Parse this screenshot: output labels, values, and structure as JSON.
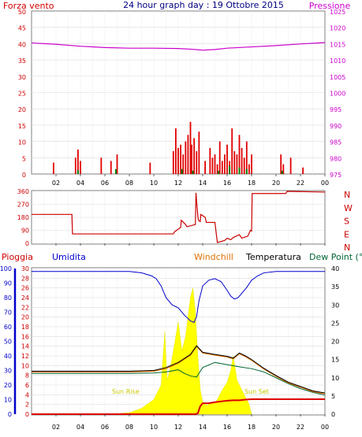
{
  "colors": {
    "wind": "#d40000",
    "wind_gust": "#ff0000",
    "wind_avg": "#008000",
    "wind_min": "#0000cc",
    "pressure": "#cc00cc",
    "title": "#000080",
    "direction": "#cc0000",
    "rain_axis": "#cc0000",
    "humidity": "#0000cc",
    "windchill": "#e07000",
    "temperature": "#000000",
    "dewpoint": "#006633",
    "solar": "#ffff00",
    "solar_label": "#c8c800",
    "rain_series": "#dd0000",
    "grid": "#d8d8d8"
  },
  "chart_data": [
    {
      "type": "bar",
      "title": "24 hour graph day : 19 Ottobre 2015",
      "left_label": "Forza vento",
      "right_label": "Pressione",
      "x_ticks": [
        "02",
        "04",
        "06",
        "08",
        "10",
        "12",
        "14",
        "16",
        "18",
        "20",
        "22",
        "00"
      ],
      "x_range": [
        0,
        24
      ],
      "y_left_range": [
        0,
        50
      ],
      "y_left_ticks": [
        "0",
        "5",
        "10",
        "15",
        "20",
        "25",
        "30",
        "35",
        "40",
        "45",
        "50"
      ],
      "y_right_range": [
        975,
        1025
      ],
      "y_right_ticks": [
        "975",
        "980",
        "985",
        "990",
        "995",
        "1000",
        "1005",
        "1010",
        "1015",
        "1020",
        "1025"
      ],
      "grid": true,
      "series": [
        {
          "name": "Forza vento",
          "x": [
            1.8,
            3.6,
            3.8,
            4.0,
            5.7,
            6.5,
            7.0,
            9.7,
            11.6,
            11.8,
            12.0,
            12.2,
            12.4,
            12.6,
            12.8,
            13.0,
            13.1,
            13.3,
            13.5,
            13.7,
            14.2,
            14.6,
            14.8,
            15.0,
            15.2,
            15.4,
            15.6,
            15.8,
            16.0,
            16.2,
            16.4,
            16.6,
            16.8,
            17.0,
            17.2,
            17.4,
            17.6,
            17.8,
            18.0,
            20.4,
            20.6,
            21.2,
            22.2
          ],
          "values": [
            3.5,
            5,
            7.5,
            4,
            5,
            4,
            6,
            3.5,
            7,
            14,
            8,
            9,
            6,
            10,
            12,
            16,
            9,
            11,
            7,
            13,
            4,
            8,
            5,
            6,
            3,
            10,
            4,
            6,
            9,
            4,
            14,
            7,
            6,
            12,
            8,
            5,
            10,
            3,
            6,
            6,
            3,
            5,
            2
          ]
        },
        {
          "name": "avg",
          "x": [
            3.8,
            6.9,
            12.3,
            13.2,
            15.3,
            16.2,
            17.0,
            17.6,
            20.5
          ],
          "values": [
            1.2,
            1.5,
            1.5,
            1.0,
            1.0,
            2.5,
            2.0,
            1.5,
            1.0
          ]
        },
        {
          "name": "Pressione",
          "x": [
            0,
            2,
            4,
            6,
            8,
            10,
            12,
            13,
            14,
            15,
            16,
            18,
            20,
            22,
            24
          ],
          "values": [
            1015.2,
            1014.8,
            1014.2,
            1013.8,
            1013.6,
            1013.6,
            1013.5,
            1013.3,
            1013.0,
            1013.2,
            1013.6,
            1014.0,
            1014.4,
            1014.9,
            1015.3
          ]
        }
      ]
    },
    {
      "type": "line",
      "x_ticks": [
        "02",
        "04",
        "06",
        "08",
        "10",
        "12",
        "14",
        "16",
        "18",
        "20",
        "22",
        "00"
      ],
      "y_range": [
        0,
        360
      ],
      "y_ticks": [
        "0",
        "90",
        "180",
        "270",
        "360"
      ],
      "compass": [
        "N",
        "W",
        "S",
        "E",
        "N"
      ],
      "grid": true,
      "series": [
        {
          "name": "direction",
          "x": [
            0,
            3.3,
            3.35,
            11.6,
            11.7,
            12.2,
            12.25,
            12.6,
            12.7,
            13.4,
            13.45,
            13.6,
            13.65,
            13.8,
            13.85,
            14.2,
            14.3,
            15.0,
            15.2,
            15.8,
            16.0,
            16.3,
            16.5,
            17.0,
            17.2,
            17.7,
            17.9,
            18.0,
            18.05,
            20.8,
            20.9,
            24
          ],
          "values": [
            200,
            200,
            65,
            65,
            80,
            110,
            160,
            130,
            115,
            130,
            350,
            190,
            160,
            150,
            200,
            180,
            145,
            145,
            5,
            20,
            35,
            25,
            40,
            60,
            35,
            50,
            90,
            85,
            345,
            345,
            360,
            355
          ]
        }
      ]
    },
    {
      "type": "line",
      "left_label": "Pioggia",
      "humidity_label": "Umidita",
      "windchill_label": "Windchill",
      "temperature_label": "Temperatura",
      "dewpoint_label": "Dew Point (°C",
      "solar_labels": [
        "Sun Rise",
        "Sun Set"
      ],
      "x_ticks": [
        "02",
        "04",
        "06",
        "08",
        "10",
        "12",
        "14",
        "16",
        "18",
        "20",
        "22",
        "00"
      ],
      "x_range": [
        0,
        24
      ],
      "rain_axis": {
        "range": [
          0,
          30
        ],
        "ticks": [
          "0",
          "2",
          "4",
          "6",
          "8",
          "10",
          "12",
          "14",
          "16",
          "18",
          "20",
          "22",
          "24",
          "26",
          "28",
          "30"
        ]
      },
      "humidity_axis": {
        "range": [
          0,
          100
        ],
        "ticks": [
          "0",
          "10",
          "20",
          "30",
          "40",
          "50",
          "60",
          "70",
          "80",
          "90",
          "100"
        ]
      },
      "temp_axis": {
        "range": [
          0,
          40
        ],
        "ticks": [
          "0",
          "5",
          "10",
          "15",
          "20",
          "25",
          "30",
          "35",
          "40"
        ]
      },
      "grid": true,
      "series": [
        {
          "name": "Umidita",
          "x": [
            0,
            2,
            4,
            6,
            8,
            9,
            9.8,
            10.2,
            10.6,
            11.0,
            11.5,
            12.0,
            12.5,
            13.0,
            13.3,
            13.5,
            13.7,
            14.0,
            14.5,
            15.0,
            15.5,
            16.0,
            16.3,
            16.6,
            16.9,
            17.2,
            17.6,
            18.0,
            18.5,
            19.0,
            20,
            22,
            24
          ],
          "values": [
            98,
            98,
            98,
            98,
            98,
            97,
            95,
            93,
            88,
            80,
            75,
            73,
            68,
            64,
            63,
            67,
            78,
            88,
            92,
            93,
            91,
            85,
            81,
            79,
            80,
            83,
            87,
            92,
            95,
            97,
            98,
            98,
            98
          ]
        },
        {
          "name": "Windchill",
          "x": [
            0,
            2,
            4,
            6,
            8,
            10,
            11,
            12,
            13,
            13.5,
            14,
            15,
            16,
            16.5,
            17,
            17.5,
            18,
            19,
            20,
            21,
            22,
            23,
            24
          ],
          "values": [
            11.6,
            11.6,
            11.6,
            11.6,
            11.6,
            11.8,
            12.5,
            14.0,
            16.2,
            18.6,
            16.8,
            16.2,
            15.7,
            15.2,
            16.6,
            15.8,
            14.8,
            12.4,
            10.4,
            8.6,
            7.4,
            6.2,
            5.6
          ]
        },
        {
          "name": "Temperatura",
          "x": [
            0,
            2,
            4,
            6,
            8,
            10,
            11,
            12,
            13,
            13.5,
            14,
            15,
            16,
            16.5,
            17,
            17.5,
            18,
            19,
            20,
            21,
            22,
            23,
            24
          ],
          "values": [
            11.8,
            11.8,
            11.8,
            11.8,
            11.8,
            12.0,
            12.8,
            14.2,
            16.4,
            18.8,
            17.0,
            16.4,
            15.9,
            15.4,
            16.8,
            16.0,
            15.0,
            12.6,
            10.6,
            8.8,
            7.6,
            6.4,
            5.8
          ]
        },
        {
          "name": "Dew Point",
          "x": [
            0,
            2,
            4,
            6,
            8,
            10,
            11,
            12,
            12.5,
            13,
            13.5,
            14,
            15,
            16,
            17,
            18,
            19,
            20,
            21,
            22,
            23,
            24
          ],
          "values": [
            11.2,
            11.2,
            11.2,
            11.2,
            11.2,
            11.3,
            11.6,
            12.2,
            11.2,
            10.5,
            10.2,
            12.8,
            14.2,
            13.6,
            13.0,
            12.5,
            11.6,
            10.0,
            8.4,
            7.0,
            6.0,
            5.2
          ]
        },
        {
          "name": "solar",
          "x": [
            6.6,
            8,
            9,
            10,
            10.6,
            10.9,
            11.0,
            11.1,
            11.3,
            11.6,
            12,
            12.3,
            12.6,
            13,
            13.2,
            13.4,
            13.6,
            13.8,
            14,
            14.2,
            14.4,
            14.6,
            15,
            15.3,
            15.6,
            16,
            16.3,
            16.5,
            16.8,
            17.0,
            17.4,
            17.8,
            18.0
          ],
          "values": [
            0,
            0.3,
            1.2,
            3,
            6,
            17,
            11,
            7,
            9,
            13,
            19,
            13,
            16,
            24,
            26,
            21,
            12,
            5,
            2.5,
            2,
            1.8,
            2.5,
            2.2,
            3.5,
            5,
            6.5,
            9,
            12,
            7,
            6,
            4,
            2,
            0
          ]
        },
        {
          "name": "Pioggia",
          "x": [
            0,
            12.6,
            13.0,
            13.4,
            13.6,
            13.8,
            14.0,
            14.5,
            15.0,
            15.5,
            16.0,
            16.5,
            17.0,
            17.5,
            18.0,
            24
          ],
          "values": [
            0,
            0,
            0,
            0,
            0.2,
            2.2,
            3.0,
            3.0,
            3.3,
            3.5,
            3.7,
            3.8,
            3.8,
            4.0,
            4.1,
            4.1
          ]
        }
      ]
    }
  ]
}
